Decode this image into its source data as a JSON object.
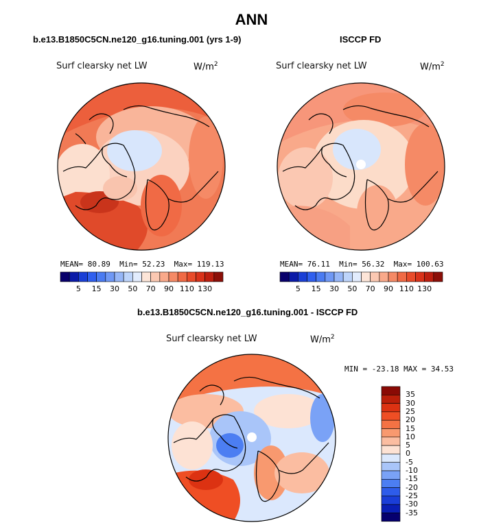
{
  "header": {
    "season": "ANN"
  },
  "panels": {
    "model": {
      "subtitle": "b.e13.B1850C5CN.ne120_g16.tuning.001 (yrs 1-9)",
      "variable": "Surf clearsky net LW",
      "units": "W/m",
      "units_exp": "2",
      "mean_label": "MEAN=",
      "mean": "80.89",
      "min_label": "Min=",
      "min": "52.23",
      "max_label": "Max=",
      "max": "119.13"
    },
    "obs": {
      "subtitle": "ISCCP FD",
      "variable": "Surf clearsky net LW",
      "units": "W/m",
      "units_exp": "2",
      "mean_label": "MEAN=",
      "mean": "76.11",
      "min_label": "Min=",
      "min": "56.32",
      "max_label": "Max=",
      "max": "100.63"
    },
    "diff": {
      "subtitle": "b.e13.B1850C5CN.ne120_g16.tuning.001 - ISCCP FD",
      "variable": "Surf clearsky net LW",
      "units": "W/m",
      "units_exp": "2",
      "stats": "MIN = -23.18 MAX =  34.53"
    }
  },
  "colorbars": {
    "field": {
      "colors": [
        "#08006b",
        "#0a1aa8",
        "#1a3fd6",
        "#2f5fef",
        "#4a7bf2",
        "#6f98f5",
        "#96b6f7",
        "#bdd4fa",
        "#e2ecfd",
        "#fde5d8",
        "#fbc8b2",
        "#f9a98a",
        "#f58a66",
        "#f06a45",
        "#e84b2a",
        "#d9321a",
        "#bd1f10",
        "#8c0f08"
      ],
      "tick_labels": [
        "5",
        "15",
        "30",
        "50",
        "70",
        "90",
        "110",
        "130"
      ]
    },
    "diff": {
      "colors": [
        "#06006e",
        "#0a1fb5",
        "#1a3ed8",
        "#2e5cea",
        "#4c7ef2",
        "#7aa2f6",
        "#a9c5f9",
        "#dbe8fd",
        "#fde2d4",
        "#fbbda1",
        "#f8996f",
        "#f47244",
        "#ef4e24",
        "#dc3212",
        "#bb1f0a",
        "#8a0a05"
      ],
      "tick_labels": [
        "35",
        "30",
        "25",
        "20",
        "15",
        "10",
        "5",
        "0",
        "-5",
        "-10",
        "-15",
        "-20",
        "-25",
        "-30",
        "-35"
      ]
    }
  },
  "chart_data": [
    {
      "type": "heatmap",
      "title": "b.e13.B1850C5CN.ne120_g16.tuning.001 (yrs 1-9)",
      "subtitle": "Surf clearsky net LW",
      "units": "W/m2",
      "projection": "north polar stereographic",
      "mean": 80.89,
      "min": 52.23,
      "max": 119.13,
      "levels": [
        5,
        10,
        15,
        20,
        25,
        30,
        40,
        50,
        60,
        70,
        80,
        90,
        100,
        110,
        120,
        130
      ]
    },
    {
      "type": "heatmap",
      "title": "ISCCP FD",
      "subtitle": "Surf clearsky net LW",
      "units": "W/m2",
      "projection": "north polar stereographic",
      "mean": 76.11,
      "min": 56.32,
      "max": 100.63,
      "levels": [
        5,
        10,
        15,
        20,
        25,
        30,
        40,
        50,
        60,
        70,
        80,
        90,
        100,
        110,
        120,
        130
      ]
    },
    {
      "type": "heatmap",
      "title": "b.e13.B1850C5CN.ne120_g16.tuning.001 - ISCCP FD",
      "subtitle": "Surf clearsky net LW",
      "units": "W/m2",
      "projection": "north polar stereographic",
      "min": -23.18,
      "max": 34.53,
      "levels": [
        -35,
        -30,
        -25,
        -20,
        -15,
        -10,
        -5,
        0,
        5,
        10,
        15,
        20,
        25,
        30,
        35
      ]
    }
  ]
}
